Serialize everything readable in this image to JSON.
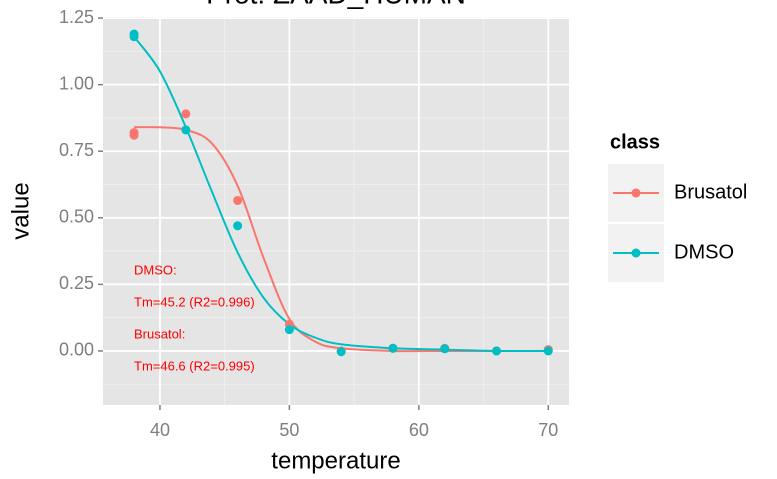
{
  "chart_data": {
    "type": "scatter",
    "title": "Prot: ZAAD_HUMAN",
    "x_label": "temperature",
    "y_label": "value",
    "xlim": [
      35.6,
      71.6
    ],
    "ylim": [
      -0.203,
      1.254
    ],
    "xticks": [
      40,
      50,
      60,
      70
    ],
    "yticks": [
      {
        "value": 0,
        "label": "0.00"
      },
      0.25,
      {
        "value": 0.5,
        "label": "0.50"
      },
      0.75,
      {
        "value": 1,
        "label": "1.00"
      },
      1.25
    ],
    "x_minor_grid": [
      45,
      55,
      65
    ],
    "y_minor_grid": [
      -0.125,
      0.125,
      0.375,
      0.625,
      0.875,
      1.125
    ],
    "grid": true,
    "legend_title": "class",
    "legend_position": "right",
    "series": [
      {
        "name": "Brusatol",
        "color": "#F8766D",
        "x": [
          38,
          38,
          42,
          46,
          50,
          54,
          58,
          62,
          66,
          70
        ],
        "values": [
          0.82,
          0.81,
          0.89,
          0.565,
          0.1,
          0,
          0.01,
          0.01,
          0,
          0.005
        ],
        "fit": {
          "x": [
            38,
            40,
            42,
            44,
            46,
            48,
            50,
            52,
            54,
            58,
            62,
            66,
            70
          ],
          "values": [
            0.84,
            0.84,
            0.83,
            0.78,
            0.62,
            0.35,
            0.12,
            0.035,
            0.01,
            0,
            0,
            0,
            0
          ]
        }
      },
      {
        "name": "DMSO",
        "color": "#00BFC4",
        "x": [
          38,
          38,
          42,
          46,
          50,
          54,
          58,
          62,
          66,
          70
        ],
        "values": [
          1.19,
          1.18,
          0.83,
          0.47,
          0.08,
          -0.003,
          0.01,
          0.008,
          0,
          0
        ],
        "fit": {
          "x": [
            38,
            40,
            42,
            44,
            46,
            48,
            50,
            52,
            54,
            58,
            62,
            66,
            70
          ],
          "values": [
            1.18,
            1.05,
            0.84,
            0.6,
            0.37,
            0.2,
            0.1,
            0.05,
            0.025,
            0.01,
            0.005,
            0,
            0
          ]
        }
      }
    ],
    "annotations": [
      "DMSO:",
      "Tm=45.2 (R2=0.996)",
      "Brusatol:",
      "Tm=46.6 (R2=0.995)"
    ],
    "annotation_color": "#FF0000"
  }
}
